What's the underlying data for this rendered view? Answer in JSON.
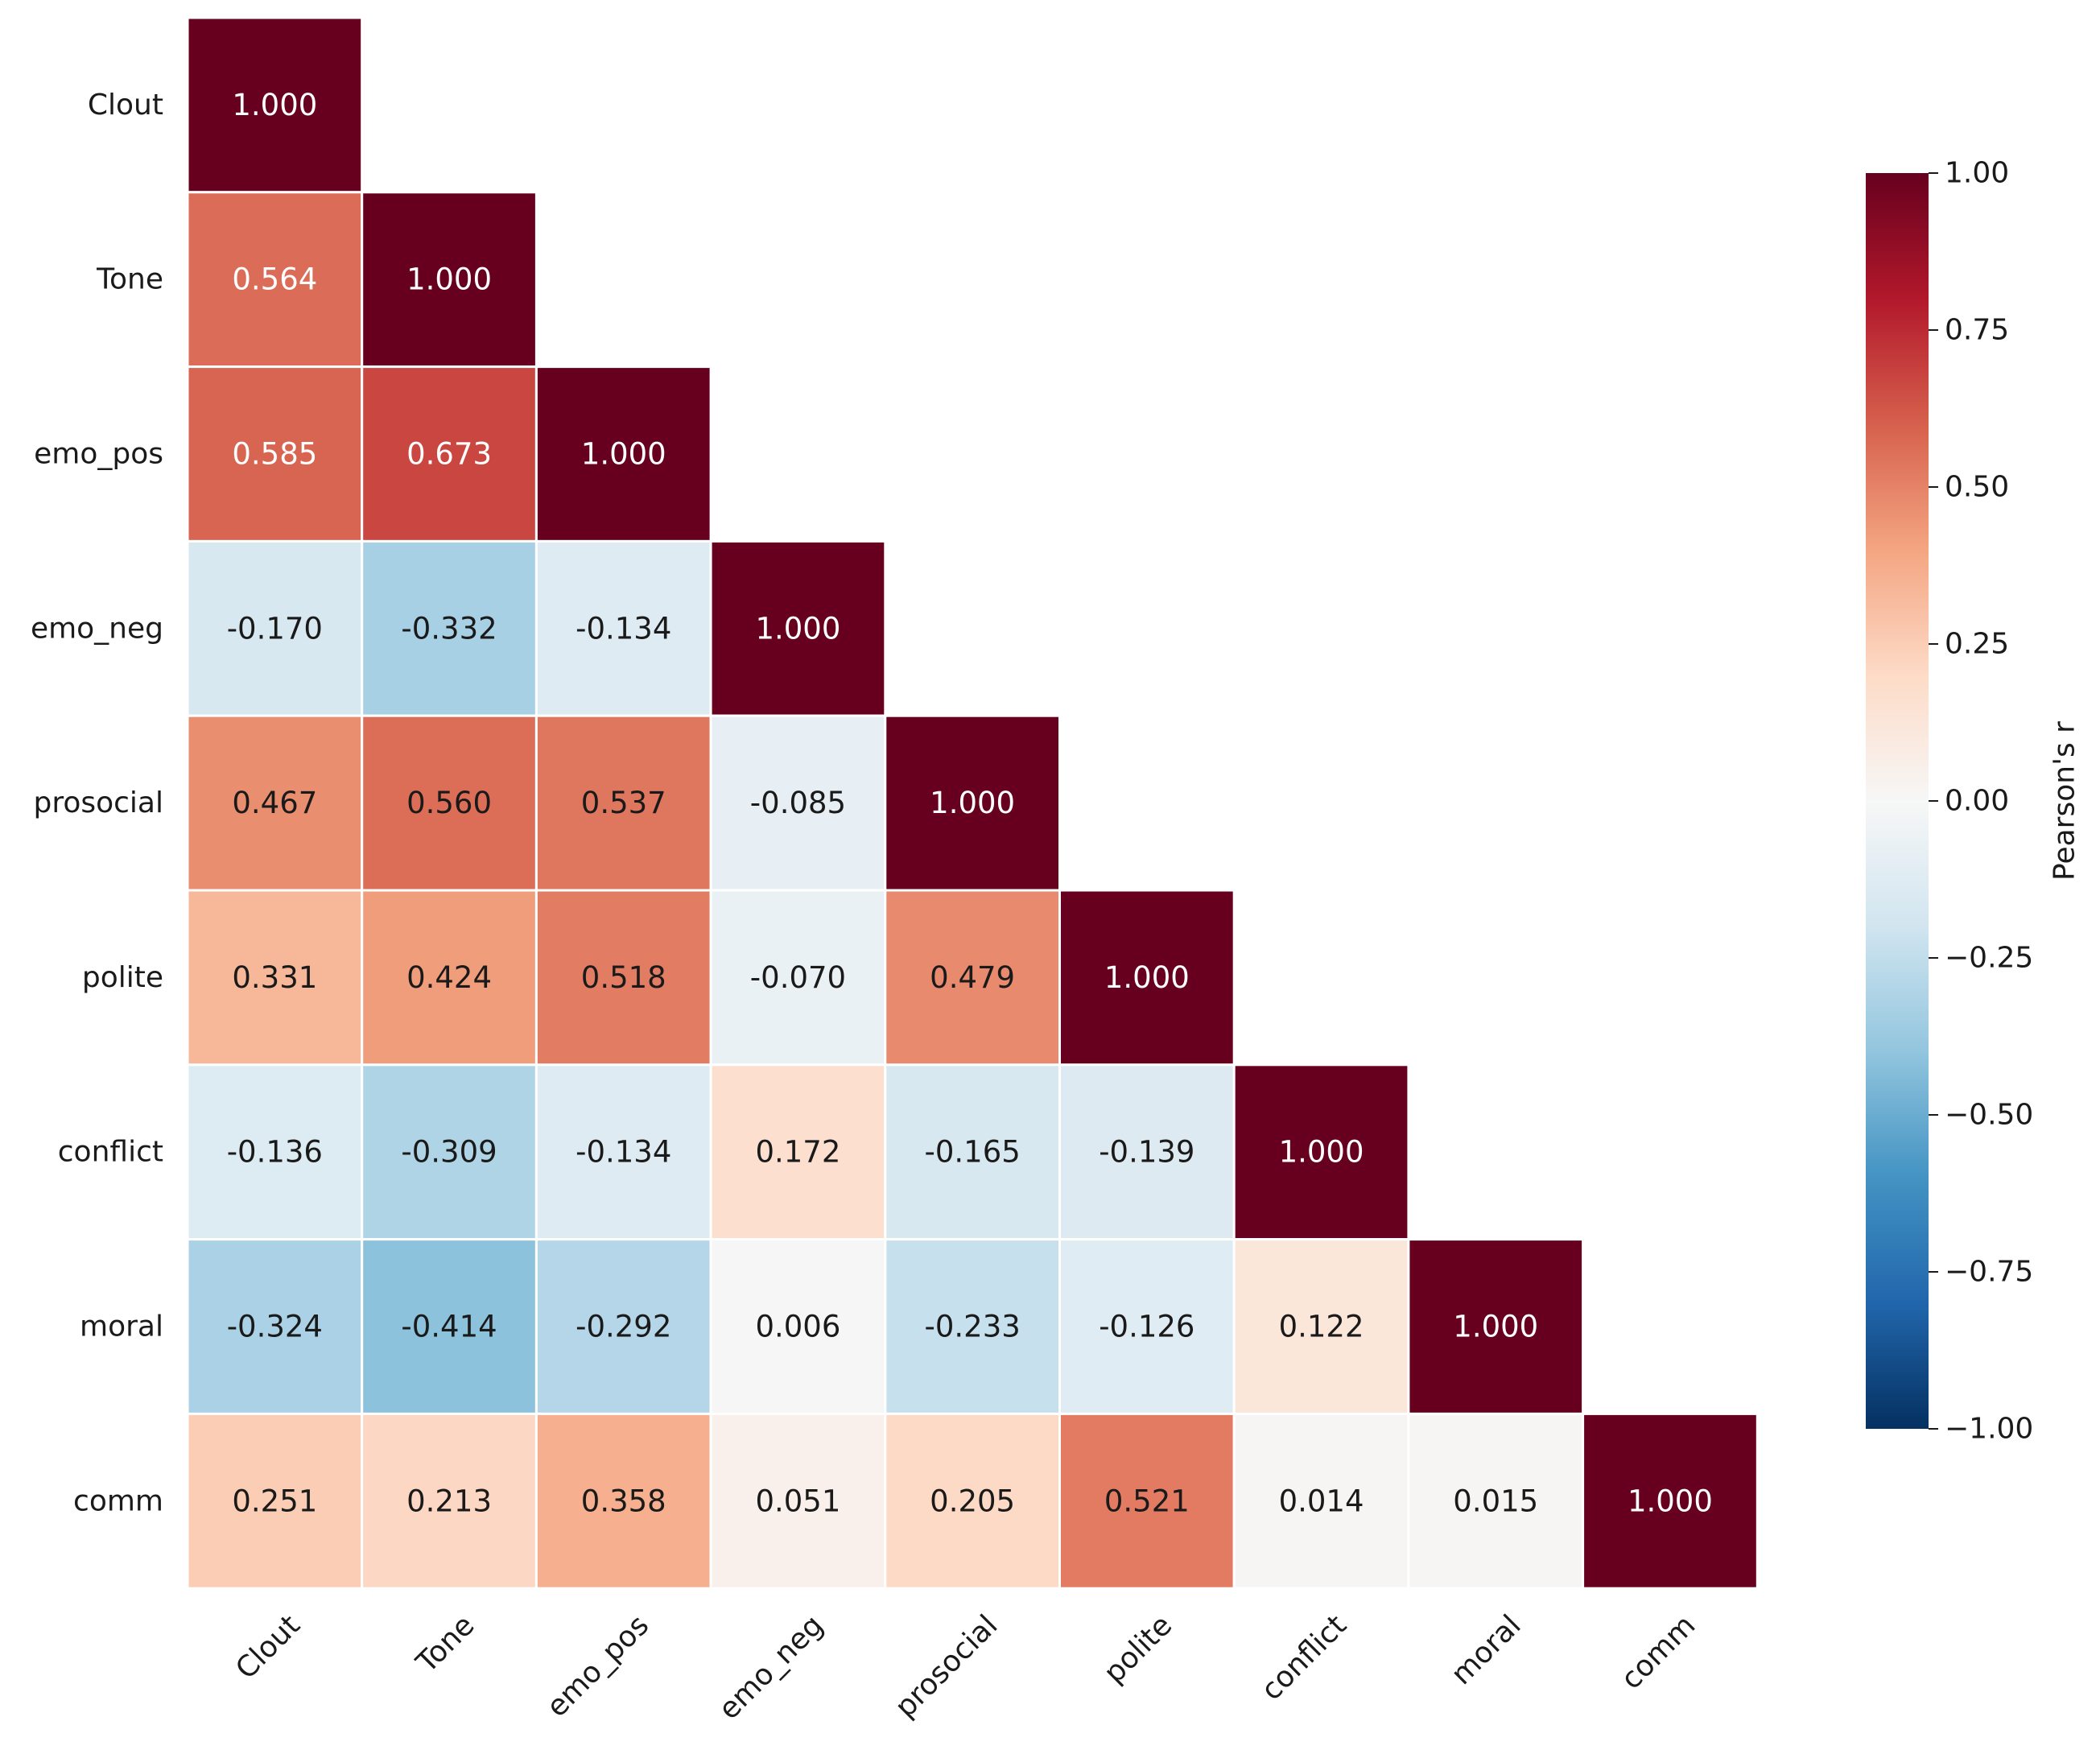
{
  "chart_data": {
    "type": "heatmap",
    "title": "",
    "variables": [
      "Clout",
      "Tone",
      "emo_pos",
      "emo_neg",
      "prosocial",
      "polite",
      "conflict",
      "moral",
      "comm"
    ],
    "value_labels": [
      [
        "1.000"
      ],
      [
        "0.564",
        "1.000"
      ],
      [
        "0.585",
        "0.673",
        "1.000"
      ],
      [
        "-0.170",
        "-0.332",
        "-0.134",
        "1.000"
      ],
      [
        "0.467",
        "0.560",
        "0.537",
        "-0.085",
        "1.000"
      ],
      [
        "0.331",
        "0.424",
        "0.518",
        "-0.070",
        "0.479",
        "1.000"
      ],
      [
        "-0.136",
        "-0.309",
        "-0.134",
        "0.172",
        "-0.165",
        "-0.139",
        "1.000"
      ],
      [
        "-0.324",
        "-0.414",
        "-0.292",
        "0.006",
        "-0.233",
        "-0.126",
        "0.122",
        "1.000"
      ],
      [
        "0.251",
        "0.213",
        "0.358",
        "0.051",
        "0.205",
        "0.521",
        "0.014",
        "0.015",
        "1.000"
      ]
    ],
    "mask": "upper-triangle",
    "colormap": "RdBu_r",
    "vmin": -1.0,
    "vmax": 1.0,
    "colorbar": {
      "label": "Pearson's r",
      "ticks": [
        1.0,
        0.75,
        0.5,
        0.25,
        0.0,
        -0.25,
        -0.5,
        -0.75,
        -1.0
      ],
      "tick_labels": [
        "1.00",
        "0.75",
        "0.50",
        "0.25",
        "0.00",
        "−0.25",
        "−0.50",
        "−0.75",
        "−1.00"
      ],
      "placement": "right"
    }
  }
}
